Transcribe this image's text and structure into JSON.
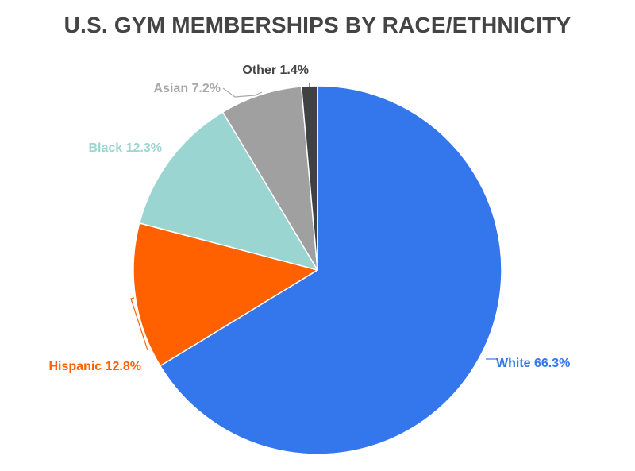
{
  "chart_data": {
    "type": "pie",
    "title": "U.S. GYM MEMBERSHIPS BY RACE/ETHNICITY",
    "slices": [
      {
        "name": "White",
        "value": 66.3,
        "label": "White 66.3%",
        "color": "#3476ec"
      },
      {
        "name": "Hispanic",
        "value": 12.8,
        "label": "Hispanic 12.8%",
        "color": "#ff6000"
      },
      {
        "name": "Black",
        "value": 12.3,
        "label": "Black 12.3%",
        "color": "#9ad5d2"
      },
      {
        "name": "Asian",
        "value": 7.2,
        "label": "Asian 7.2%",
        "color": "#a0a0a0"
      },
      {
        "name": "Other",
        "value": 1.4,
        "label": "Other 1.4%",
        "color": "#3f4143"
      }
    ],
    "label_colors": {
      "White": "#3476ec",
      "Hispanic": "#ff6000",
      "Black": "#9ad5d2",
      "Asian": "#a9a9a9",
      "Other": "#444444"
    }
  }
}
